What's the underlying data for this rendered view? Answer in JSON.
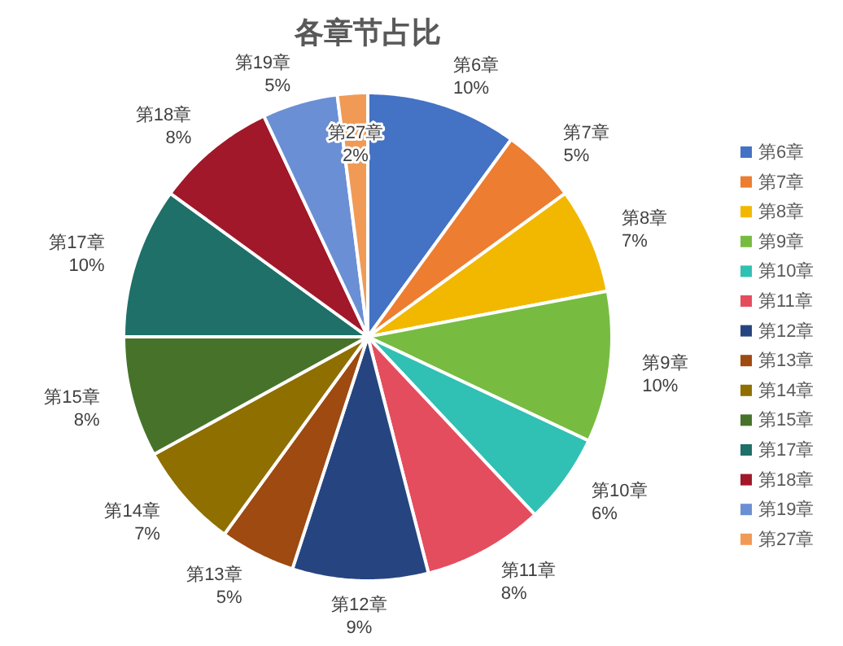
{
  "chart_data": {
    "type": "pie",
    "title": "各章节占比",
    "categories": [
      "第6章",
      "第7章",
      "第8章",
      "第9章",
      "第10章",
      "第11章",
      "第12章",
      "第13章",
      "第14章",
      "第15章",
      "第17章",
      "第18章",
      "第19章",
      "第27章"
    ],
    "values": [
      10,
      5,
      7,
      10,
      6,
      8,
      9,
      5,
      7,
      8,
      10,
      8,
      5,
      2
    ],
    "value_labels": [
      "10%",
      "5%",
      "7%",
      "10%",
      "6%",
      "8%",
      "9%",
      "5%",
      "7%",
      "8%",
      "10%",
      "8%",
      "5%",
      "2%"
    ],
    "colors": [
      "#4472c4",
      "#ed7d31",
      "#f2b800",
      "#77bc41",
      "#31c0b4",
      "#e44d5e",
      "#264580",
      "#9e4a10",
      "#8f6f00",
      "#467329",
      "#1e7068",
      "#a01829",
      "#6b8fd4",
      "#f09a56"
    ],
    "legend": "right"
  }
}
